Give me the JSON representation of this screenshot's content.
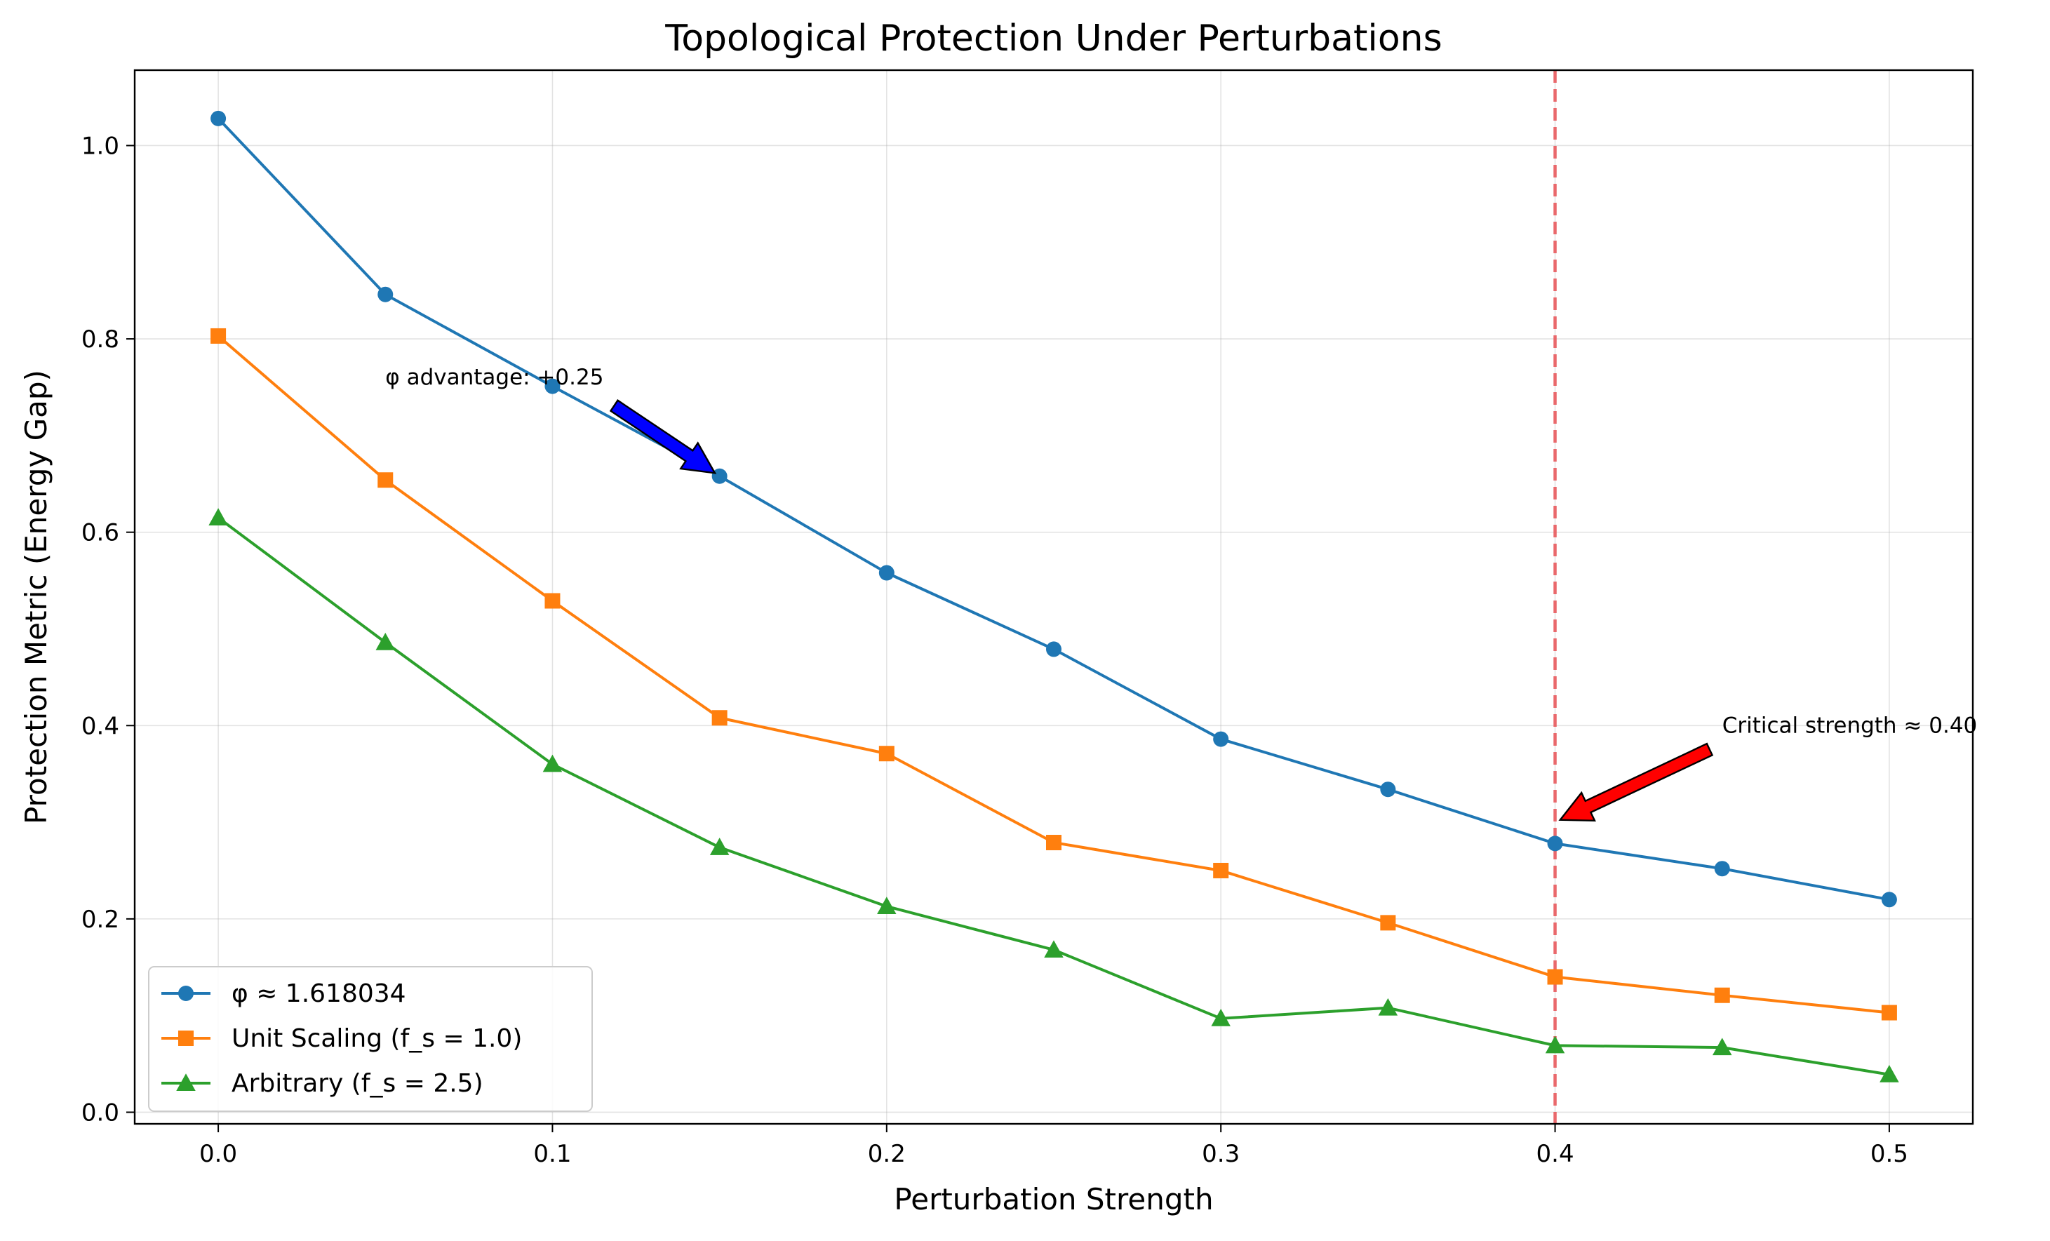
{
  "chart_data": {
    "type": "line",
    "title": "Topological Protection Under Perturbations",
    "xlabel": "Perturbation Strength",
    "ylabel": "Protection Metric (Energy Gap)",
    "xlim": [
      -0.025,
      0.525
    ],
    "ylim": [
      -0.012,
      1.078
    ],
    "x_ticks": [
      "0.0",
      "0.1",
      "0.2",
      "0.3",
      "0.4",
      "0.5"
    ],
    "x_tick_values": [
      0.0,
      0.1,
      0.2,
      0.3,
      0.4,
      0.5
    ],
    "y_ticks": [
      "0.0",
      "0.2",
      "0.4",
      "0.6",
      "0.8",
      "1.0"
    ],
    "y_tick_values": [
      0.0,
      0.2,
      0.4,
      0.6,
      0.8,
      1.0
    ],
    "grid": true,
    "legend_position": "lower-left",
    "x": [
      0.0,
      0.05,
      0.1,
      0.15,
      0.2,
      0.25,
      0.3,
      0.35,
      0.4,
      0.45,
      0.5
    ],
    "series": [
      {
        "name": "φ ≈ 1.618034",
        "color": "#1f77b4",
        "marker": "circle",
        "values": [
          1.028,
          0.846,
          0.751,
          0.658,
          0.558,
          0.479,
          0.386,
          0.334,
          0.278,
          0.252,
          0.22
        ]
      },
      {
        "name": "Unit Scaling (f_s = 1.0)",
        "color": "#ff7f0e",
        "marker": "square",
        "values": [
          0.803,
          0.654,
          0.529,
          0.408,
          0.371,
          0.279,
          0.25,
          0.196,
          0.14,
          0.121,
          0.103
        ]
      },
      {
        "name": "Arbitrary (f_s = 2.5)",
        "color": "#2ca02c",
        "marker": "triangle",
        "values": [
          0.615,
          0.486,
          0.36,
          0.274,
          0.213,
          0.168,
          0.097,
          0.108,
          0.069,
          0.067,
          0.039
        ]
      }
    ],
    "vline": {
      "x": 0.4,
      "color": "#e8595c",
      "style": "dashed"
    },
    "annotations": [
      {
        "text": "φ advantage: +0.25",
        "point": [
          0.15,
          0.658
        ],
        "text_at": [
          0.05,
          0.76
        ],
        "arrow_color": "#0000ff"
      },
      {
        "text": "Critical strength ≈ 0.40",
        "point": [
          0.4,
          0.3
        ],
        "text_at": [
          0.45,
          0.4
        ],
        "arrow_color": "#ff0000"
      }
    ]
  }
}
